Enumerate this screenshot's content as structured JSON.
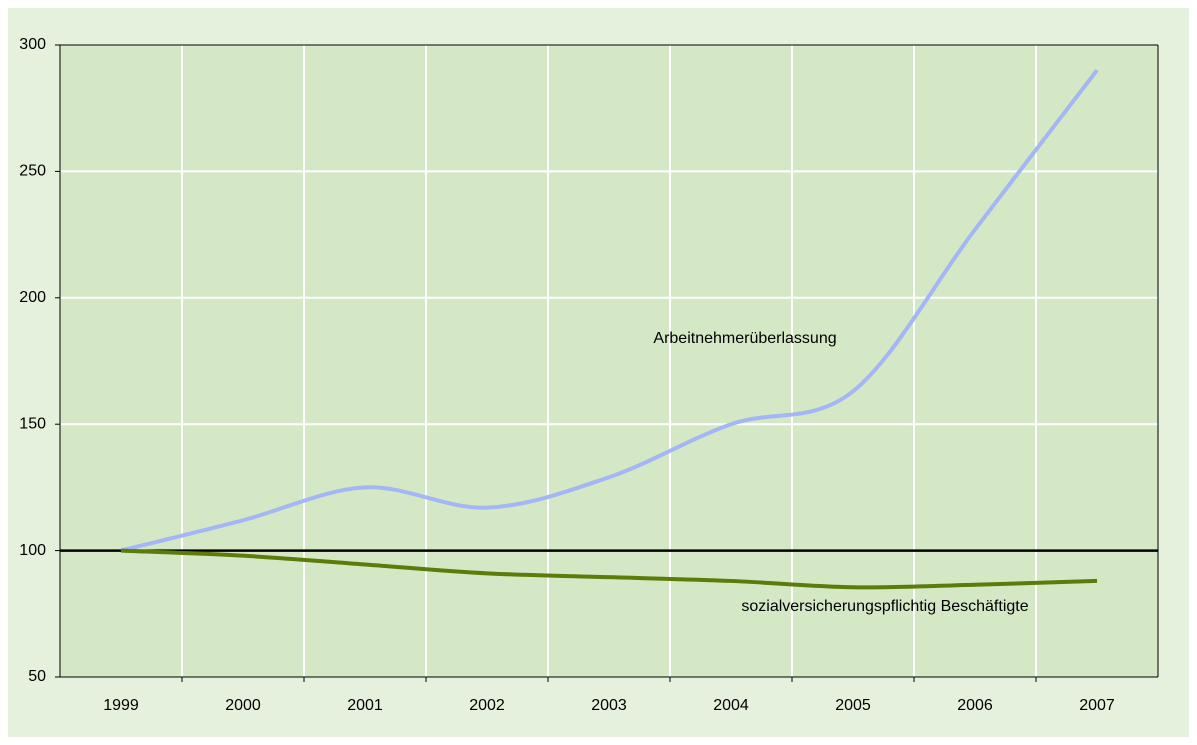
{
  "chart_data": {
    "type": "line",
    "categories": [
      "1999",
      "2000",
      "2001",
      "2002",
      "2003",
      "2004",
      "2005",
      "2006",
      "2007"
    ],
    "series": [
      {
        "name": "Arbeitnehmerüberlassung",
        "color": "#a4b6f4",
        "values": [
          100,
          112,
          125,
          117,
          129,
          150,
          163,
          227,
          290
        ]
      },
      {
        "name": "sozialversicherungspflichtig Beschäftigte",
        "color": "#5b7c0b",
        "values": [
          100,
          98,
          94.5,
          91,
          89.5,
          88,
          85.5,
          86.5,
          88
        ]
      }
    ],
    "ylim": [
      50,
      300
    ],
    "yticks": [
      50,
      100,
      150,
      200,
      250,
      300
    ],
    "grid": true,
    "smooth": true,
    "reference_line": 100
  }
}
